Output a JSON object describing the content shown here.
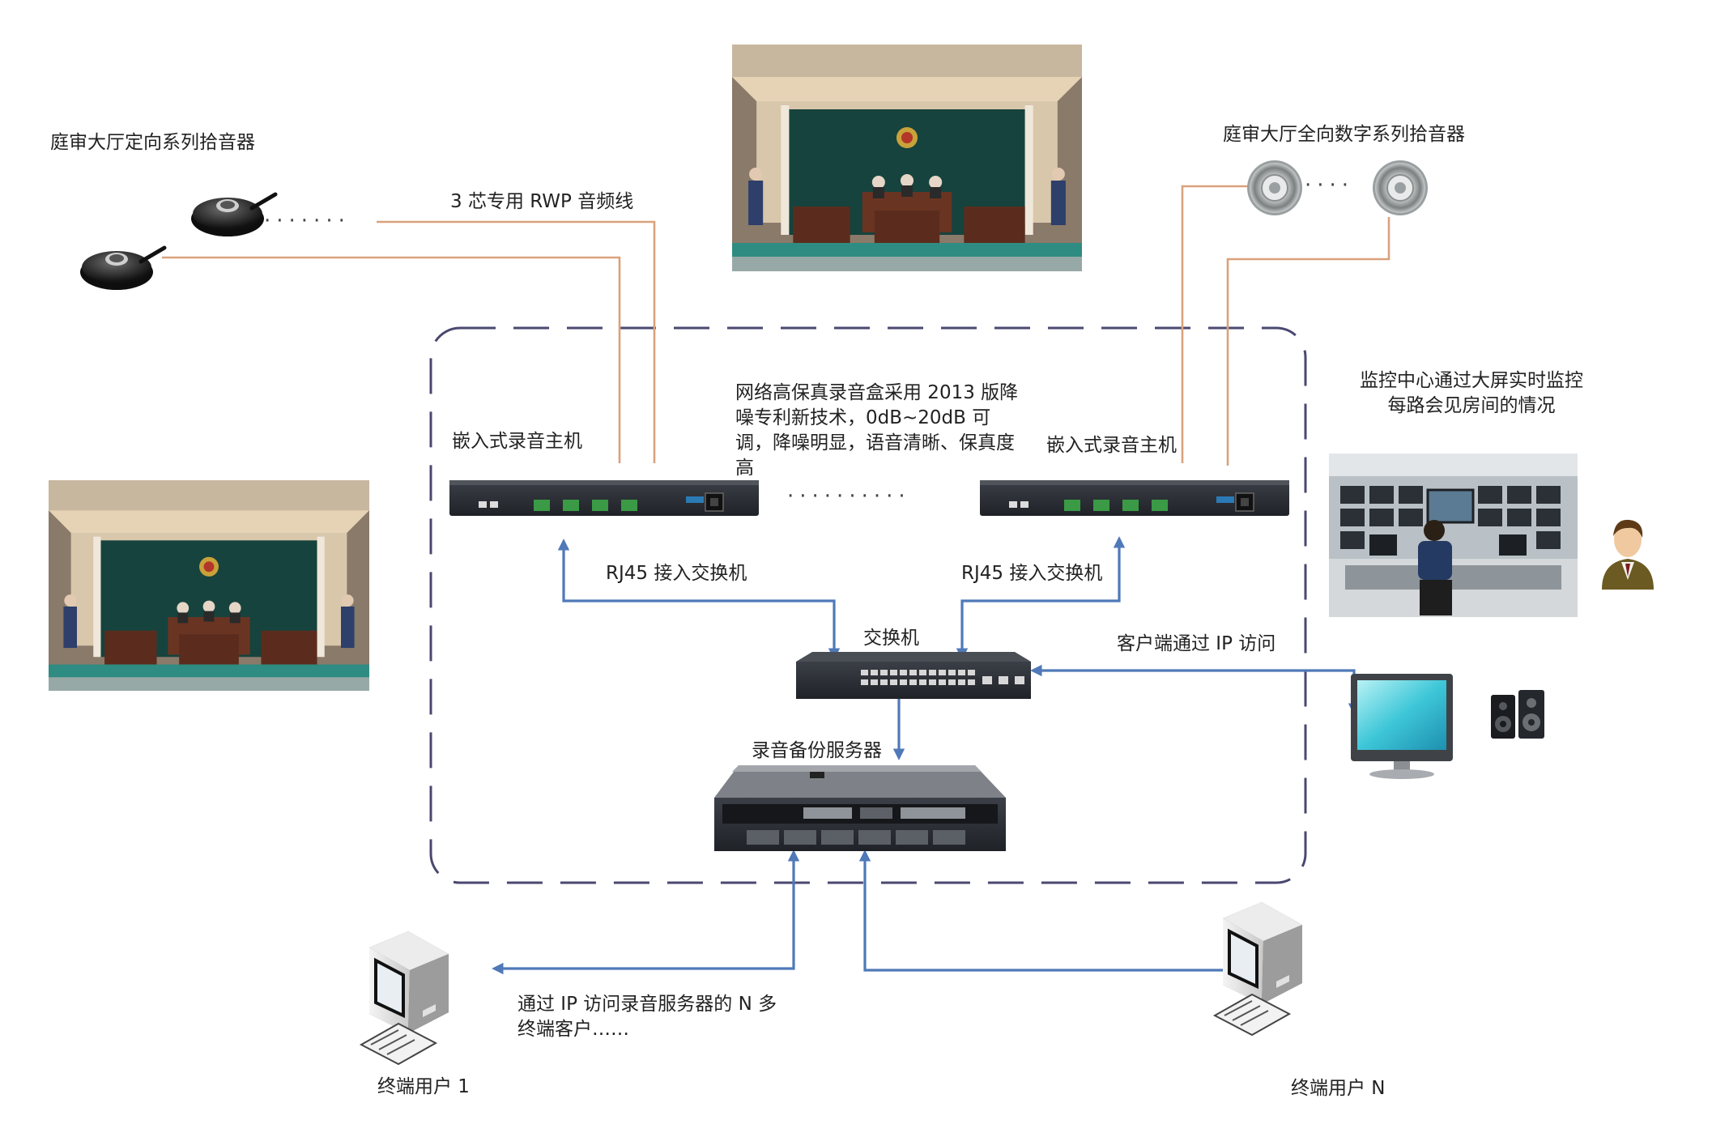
{
  "labels": {
    "directional_mic": "庭审大厅定向系列拾音器",
    "rwp_cable": "3 芯专用 RWP 音频线",
    "omni_mic": "庭审大厅全向数字系列拾音器",
    "recorder_left": "嵌入式录音主机",
    "recorder_right": "嵌入式录音主机",
    "description": "网络高保真录音盒采用 2013 版降噪专利新技术，0dB~20dB 可调，降噪明显，语音清晰、保真度高",
    "monitor_center": "监控中心通过大屏实时监控每路会见房间的情况",
    "rj45_left": "RJ45 接入交换机",
    "rj45_right": "RJ45 接入交换机",
    "switch": "交换机",
    "client_ip": "客户端通过 IP 访问",
    "backup_server": "录音备份服务器",
    "terminal_clients": "通过 IP 访问录音服务器的 N 多终端客户……",
    "user_1": "终端用户 1",
    "user_n": "终端用户 N"
  },
  "ellipsis": {
    "mics_left": "·······",
    "mics_right": "····",
    "recorders": "··········"
  },
  "colors": {
    "audio_cable": "#d9a27c",
    "network_arrow": "#4f79b8",
    "dashed_boundary": "#4a4870",
    "device_dark": "#2a2d33",
    "port_green": "#3a9a45"
  },
  "icons": [
    "courtroom-photo",
    "directional-microphone-icon",
    "omni-microphone-icon",
    "audio-recorder-icon",
    "network-switch-icon",
    "rack-server-icon",
    "monitoring-center-photo",
    "operator-avatar-icon",
    "lcd-monitor-icon",
    "speaker-icon",
    "desktop-computer-icon"
  ]
}
